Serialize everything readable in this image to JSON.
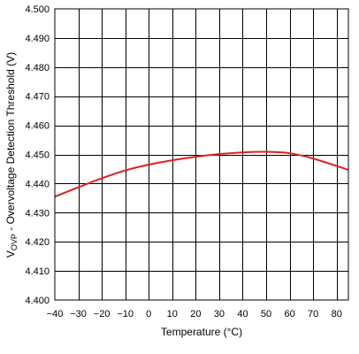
{
  "chart_data": {
    "type": "line",
    "title": "",
    "xlabel": "Temperature (°C)",
    "ylabel": {
      "main": "V",
      "subscript": "OVP",
      "rest": " - Overvoltage Detection Threshold (V)"
    },
    "xlim": [
      -40,
      85
    ],
    "ylim": [
      4.4,
      4.5
    ],
    "grid": true,
    "x_ticks": [
      "-40",
      "-30",
      "-20",
      "-10",
      "0",
      "10",
      "20",
      "30",
      "40",
      "50",
      "60",
      "70",
      "80"
    ],
    "y_ticks": [
      "4.400",
      "4.410",
      "4.420",
      "4.430",
      "4.440",
      "4.450",
      "4.460",
      "4.470",
      "4.480",
      "4.490",
      "4.500"
    ],
    "series": [
      {
        "color": "#e02020",
        "x": [
          -40,
          -30,
          -20,
          -10,
          0,
          10,
          20,
          30,
          40,
          50,
          60,
          70,
          85
        ],
        "y": [
          4.4355,
          4.4387,
          4.4418,
          4.4445,
          4.4465,
          4.448,
          4.4492,
          4.4501,
          4.4507,
          4.4509,
          4.4504,
          4.4486,
          4.4447
        ]
      }
    ]
  }
}
